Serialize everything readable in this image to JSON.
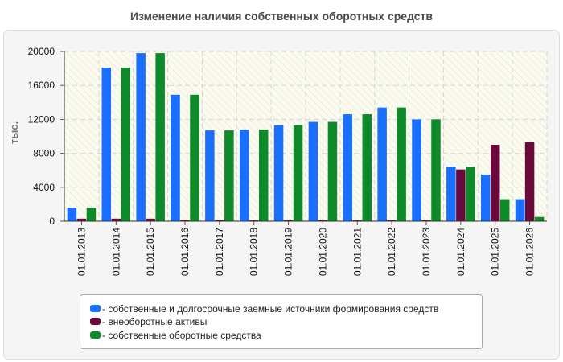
{
  "chart_data": {
    "type": "bar",
    "title": "Изменение наличия собственных оборотных средств",
    "ylabel": "тыс.",
    "xlabel": "",
    "ylim": [
      0,
      20000
    ],
    "yticks": [
      "0",
      "4000",
      "8000",
      "12000",
      "16000",
      "20000"
    ],
    "grid": true,
    "legend_position": "bottom",
    "categories": [
      "01.01.2013",
      "01.01.2014",
      "01.01.2015",
      "01.01.2016",
      "01.01.2017",
      "01.01.2018",
      "01.01.2019",
      "01.01.2020",
      "01.01.2021",
      "01.01.2022",
      "01.01.2023",
      "01.01.2024",
      "01.01.2025",
      "01.01.2026"
    ],
    "series": [
      {
        "name": "- собственные и долгосрочные заемные источники формирования средств",
        "color": "#1a6fff",
        "values": [
          1600,
          18100,
          19800,
          14900,
          10700,
          10800,
          11300,
          11700,
          12600,
          13400,
          12000,
          6400,
          5500,
          2600
        ]
      },
      {
        "name": "- внеоборотные активы",
        "color": "#6a0a3c",
        "values": [
          300,
          300,
          300,
          120,
          100,
          100,
          100,
          100,
          100,
          100,
          100,
          6100,
          9000,
          9300
        ]
      },
      {
        "name": "- собственные оборотные средства",
        "color": "#0f8a2b",
        "values": [
          1600,
          18100,
          19800,
          14900,
          10700,
          10800,
          11300,
          11700,
          12600,
          13400,
          12000,
          6400,
          2600,
          500
        ]
      }
    ]
  }
}
